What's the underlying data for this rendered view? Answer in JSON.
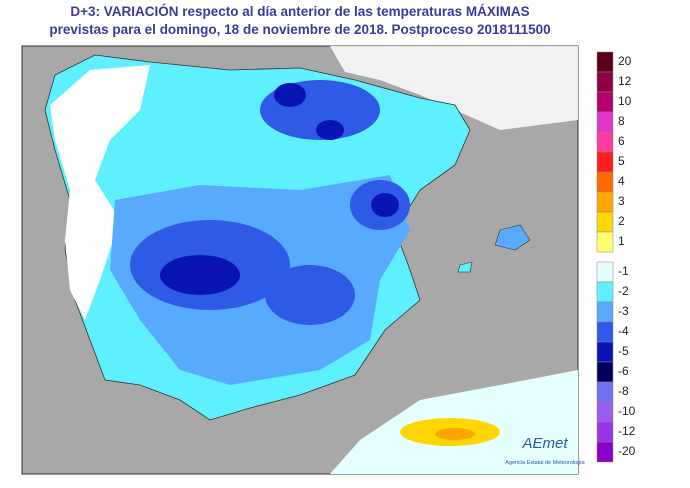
{
  "header": {
    "line1": "D+3:  VARIACIÓN respecto al día anterior de las temperaturas MÁXIMAS",
    "line2": "previstas para el domingo, 18 de noviembre de 2018. Postproceso 2018111500"
  },
  "legend_positive": [
    {
      "value": 20,
      "color": "#5c0018"
    },
    {
      "value": 12,
      "color": "#8c0046"
    },
    {
      "value": 10,
      "color": "#b4006e"
    },
    {
      "value": 8,
      "color": "#e036c8"
    },
    {
      "value": 6,
      "color": "#ff3aa0"
    },
    {
      "value": 5,
      "color": "#ff1e1e"
    },
    {
      "value": 4,
      "color": "#ff6a00"
    },
    {
      "value": 3,
      "color": "#ffa500"
    },
    {
      "value": 2,
      "color": "#ffd700"
    },
    {
      "value": 1,
      "color": "#ffff70"
    }
  ],
  "legend_negative": [
    {
      "value": -1,
      "color": "#e6ffff"
    },
    {
      "value": -2,
      "color": "#5ff0ff"
    },
    {
      "value": -3,
      "color": "#58aaff"
    },
    {
      "value": -4,
      "color": "#2e5ae6"
    },
    {
      "value": -5,
      "color": "#0a14b4"
    },
    {
      "value": -6,
      "color": "#00005a"
    },
    {
      "value": -8,
      "color": "#7070f0"
    },
    {
      "value": -10,
      "color": "#9a5cf0"
    },
    {
      "value": -12,
      "color": "#9a32e6"
    },
    {
      "value": -20,
      "color": "#8c00c8"
    }
  ],
  "logo": {
    "name": "AEmet",
    "subtitle": "Agencia Estatal de Meteorología"
  }
}
